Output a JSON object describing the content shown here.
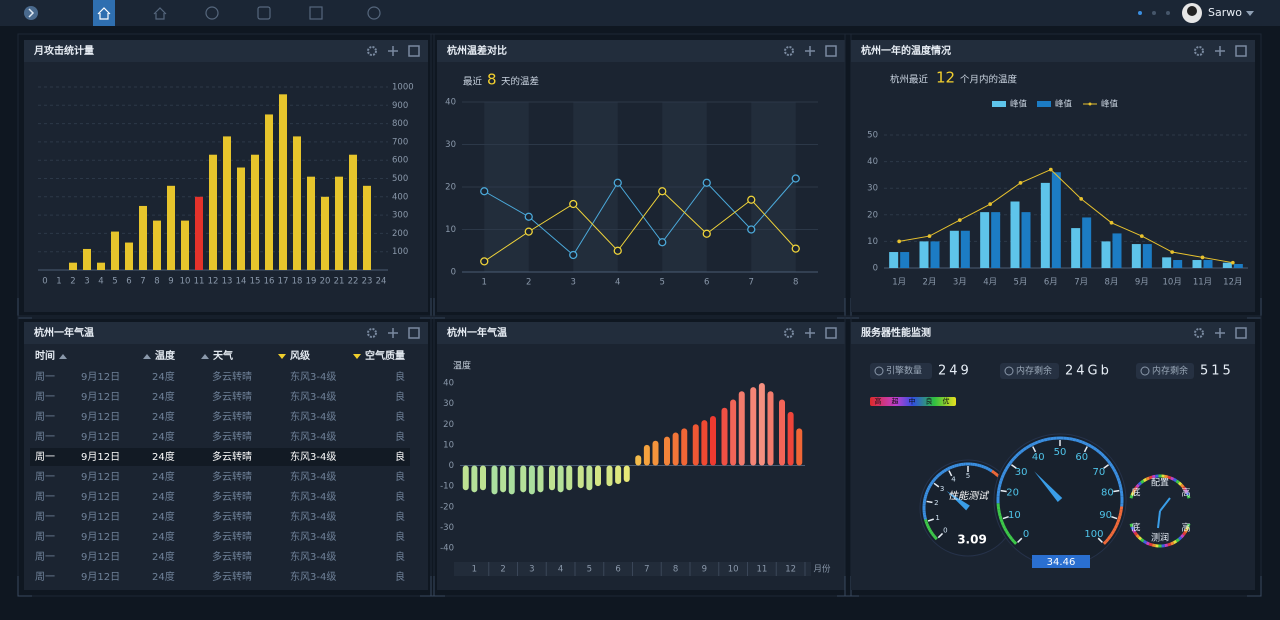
{
  "header": {
    "user": "Sarwo"
  },
  "chart_data": [
    {
      "type": "bar",
      "title": "月攻击统计量",
      "categories": [
        "0",
        "1",
        "2",
        "3",
        "4",
        "5",
        "6",
        "7",
        "8",
        "9",
        "10",
        "11",
        "12",
        "13",
        "14",
        "15",
        "16",
        "17",
        "18",
        "19",
        "20",
        "21",
        "22",
        "23",
        "24"
      ],
      "values": [
        null,
        null,
        40,
        115,
        40,
        210,
        150,
        350,
        270,
        460,
        270,
        400,
        630,
        730,
        560,
        630,
        850,
        960,
        730,
        510,
        400,
        510,
        630,
        460,
        null
      ],
      "colors": [
        null,
        null,
        "#e7c52c",
        "#e7c52c",
        "#e7c52c",
        "#e7c52c",
        "#e7c52c",
        "#e7c52c",
        "#e7c52c",
        "#e7c52c",
        "#e7c52c",
        "#e4322b",
        "#e7c52c",
        "#e7c52c",
        "#e7c52c",
        "#e7c52c",
        "#e7c52c",
        "#e7c52c",
        "#e7c52c",
        "#e7c52c",
        "#e7c52c",
        "#e7c52c",
        "#e7c52c",
        "#e7c52c",
        null
      ],
      "ylim": [
        0,
        1000
      ],
      "yticks": [
        100,
        200,
        300,
        400,
        500,
        600,
        700,
        800,
        900,
        1000
      ],
      "grid": true
    },
    {
      "type": "line",
      "title": "杭州温差对比",
      "subtitle": [
        "最近",
        "8",
        "天的温差"
      ],
      "x": [
        1,
        2,
        3,
        4,
        5,
        6,
        7,
        8
      ],
      "xlim": [
        0.5,
        8.5
      ],
      "xticks": [
        1,
        2,
        3,
        4,
        5,
        6,
        7,
        8
      ],
      "ylim": [
        0,
        40
      ],
      "yticks": [
        0,
        10,
        20,
        30,
        40
      ],
      "grid": true,
      "series": [
        {
          "color": "#4ba9da",
          "values": [
            19,
            13,
            4,
            21,
            7,
            21,
            10,
            22
          ]
        },
        {
          "color": "#f0d43a",
          "values": [
            2.5,
            9.5,
            16,
            5,
            19,
            9,
            17,
            5.5
          ]
        }
      ]
    },
    {
      "type": "bar",
      "title": "杭州一年的温度情况",
      "subtitle": [
        "杭州最近",
        "12",
        "个月内的温度"
      ],
      "categories": [
        "1月",
        "2月",
        "3月",
        "4月",
        "5月",
        "6月",
        "7月",
        "8月",
        "9月",
        "10月",
        "11月",
        "12月"
      ],
      "ylim": [
        0,
        50
      ],
      "yticks": [
        0,
        10,
        20,
        30,
        40,
        50
      ],
      "grid": true,
      "legend": "top",
      "series": [
        {
          "name": "峰值",
          "color": "#5ec4ea",
          "values": [
            6,
            10,
            14,
            21,
            25,
            32,
            15,
            10,
            9,
            4,
            3,
            2
          ]
        },
        {
          "name": "峰值",
          "color": "#1c7cc4",
          "values": [
            6,
            10,
            14,
            21,
            21,
            36,
            19,
            13,
            9,
            3,
            3,
            1.5
          ]
        },
        {
          "name": "峰值",
          "type": "line",
          "color": "#e8c22e",
          "values": [
            10,
            12,
            18,
            24,
            32,
            37,
            26,
            17,
            12,
            6,
            4,
            2
          ]
        }
      ]
    },
    {
      "type": "bar",
      "title": "杭州一年气温",
      "ylabel": "温度",
      "xlabel": "月份",
      "x": [
        0.7,
        1,
        1.3,
        1.7,
        2,
        2.3,
        2.7,
        3,
        3.3,
        3.7,
        4,
        4.3,
        4.7,
        5,
        5.3,
        5.7,
        6,
        6.3,
        6.7,
        7,
        7.3,
        7.7,
        8,
        8.3,
        8.7,
        9,
        9.3,
        9.7,
        10,
        10.3,
        10.7,
        11,
        11.3,
        11.7,
        12,
        12.3
      ],
      "values": [
        -12,
        -13,
        -12,
        -14,
        -13,
        -14,
        -13,
        -14,
        -13,
        -12,
        -13,
        -12,
        -11,
        -12,
        -10,
        -10,
        -9,
        -8,
        5,
        10,
        12,
        14,
        16,
        18,
        20,
        22,
        24,
        28,
        32,
        36,
        38,
        40,
        36,
        32,
        26,
        18
      ],
      "xlim": [
        0.5,
        12.5
      ],
      "xticks": [
        1,
        2,
        3,
        4,
        5,
        6,
        7,
        8,
        9,
        10,
        11,
        12
      ],
      "ylim": [
        -40,
        40
      ],
      "yticks": [
        -40,
        -30,
        -20,
        -10,
        0,
        10,
        20,
        30,
        40
      ],
      "palette": [
        "#2a9fc0",
        "#44d0e0",
        "#e8e878",
        "#f5b040",
        "#ee3a30",
        "#f59080"
      ]
    }
  ],
  "table": {
    "title": "杭州一年气温",
    "columns": [
      "时间",
      "温度",
      "天气",
      "风级",
      "空气质量"
    ],
    "rows": [
      [
        "周一",
        "9月12日",
        "24度",
        "多云转晴",
        "东风3-4级",
        "良"
      ],
      [
        "周一",
        "9月12日",
        "24度",
        "多云转晴",
        "东风3-4级",
        "良"
      ],
      [
        "周一",
        "9月12日",
        "24度",
        "多云转晴",
        "东风3-4级",
        "良"
      ],
      [
        "周一",
        "9月12日",
        "24度",
        "多云转晴",
        "东风3-4级",
        "良"
      ],
      [
        "周一",
        "9月12日",
        "24度",
        "多云转晴",
        "东风3-4级",
        "良"
      ],
      [
        "周一",
        "9月12日",
        "24度",
        "多云转晴",
        "东风3-4级",
        "良"
      ],
      [
        "周一",
        "9月12日",
        "24度",
        "多云转晴",
        "东风3-4级",
        "良"
      ],
      [
        "周一",
        "9月12日",
        "24度",
        "多云转晴",
        "东风3-4级",
        "良"
      ],
      [
        "周一",
        "9月12日",
        "24度",
        "多云转晴",
        "东风3-4级",
        "良"
      ],
      [
        "周一",
        "9月12日",
        "24度",
        "多云转晴",
        "东风3-4级",
        "良"
      ],
      [
        "周一",
        "9月12日",
        "24度",
        "多云转晴",
        "东风3-4级",
        "良"
      ]
    ],
    "highlight_row": 4
  },
  "monitor": {
    "title": "服务器性能监测",
    "stats": [
      {
        "label": "引擎数量",
        "value": 249
      },
      {
        "label": "内存剩余",
        "value": "24Gb"
      },
      {
        "label": "内存剩余",
        "value": 515
      }
    ],
    "quality_labels": [
      "高",
      "超",
      "中",
      "良",
      "优"
    ],
    "gauges": [
      {
        "label": "性能测试",
        "value": 3.09,
        "lim": [
          0,
          5
        ],
        "ticks": [
          0,
          1,
          2,
          3,
          4,
          5
        ]
      },
      {
        "value": 34.46,
        "lim": [
          0,
          100
        ],
        "ticks": [
          0,
          10,
          20,
          30,
          40,
          50,
          60,
          70,
          80,
          90,
          100
        ]
      }
    ],
    "dial_labels": [
      "底",
      "配置",
      "高",
      "底",
      "测润",
      "高"
    ]
  }
}
